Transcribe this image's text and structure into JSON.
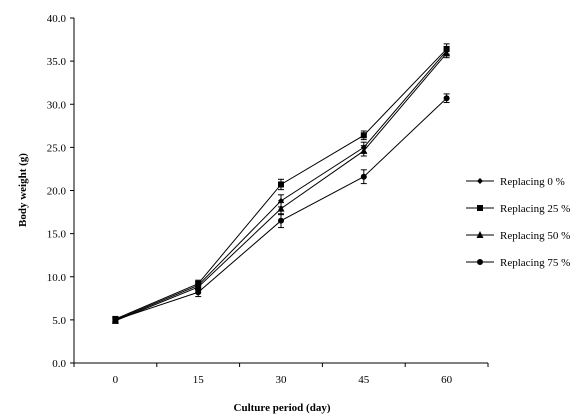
{
  "chart_data": {
    "type": "line",
    "xlabel": "Culture period (day)",
    "ylabel": "Body weight (g)",
    "categories": [
      "0",
      "15",
      "30",
      "45",
      "60"
    ],
    "ylim": [
      0,
      40
    ],
    "y_ticks": [
      "0.0",
      "5.0",
      "10.0",
      "15.0",
      "20.0",
      "25.0",
      "30.0",
      "35.0",
      "40.0"
    ],
    "grid": false,
    "legend_position": "right",
    "error_bars": true,
    "series": [
      {
        "name": "Replacing 0 %",
        "marker": "diamond",
        "values": [
          5.0,
          9.0,
          18.8,
          25.0,
          36.2
        ],
        "errors": [
          0.3,
          0.4,
          0.7,
          0.6,
          0.5
        ]
      },
      {
        "name": "Replacing 25 %",
        "marker": "square",
        "values": [
          5.1,
          9.2,
          20.7,
          26.4,
          36.4
        ],
        "errors": [
          0.3,
          0.4,
          0.6,
          0.5,
          0.6
        ]
      },
      {
        "name": "Replacing 50 %",
        "marker": "triangle",
        "values": [
          4.9,
          8.8,
          17.9,
          24.6,
          35.9
        ],
        "errors": [
          0.3,
          0.4,
          0.7,
          0.6,
          0.5
        ]
      },
      {
        "name": "Replacing 75 %",
        "marker": "circle",
        "values": [
          5.0,
          8.2,
          16.5,
          21.6,
          30.7
        ],
        "errors": [
          0.3,
          0.5,
          0.8,
          0.8,
          0.5
        ]
      }
    ],
    "colors": {
      "line": "#000000",
      "background": "#ffffff"
    }
  }
}
